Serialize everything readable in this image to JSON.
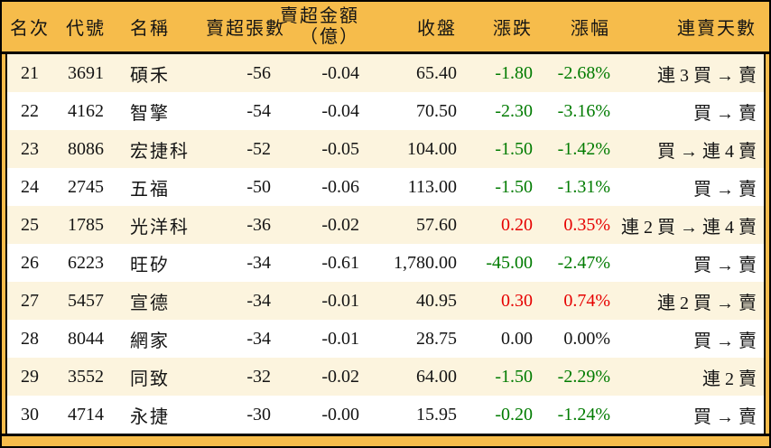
{
  "colors": {
    "header_bg": "#F6BC4B",
    "row_bg": "#FFFFFF",
    "row_alt_bg": "#FCF4DE",
    "border": "#000000",
    "up_red": "#E60000",
    "down_green": "#007B00",
    "text": "#141414"
  },
  "table": {
    "columns": [
      {
        "key": "rank",
        "label": "名次"
      },
      {
        "key": "code",
        "label": "代號"
      },
      {
        "key": "name",
        "label": "名稱"
      },
      {
        "key": "sell_volume",
        "label": "賣超張數"
      },
      {
        "key": "sell_amount",
        "label": "賣超金額",
        "label2": "（億）"
      },
      {
        "key": "close",
        "label": "收盤"
      },
      {
        "key": "change",
        "label": "漲跌"
      },
      {
        "key": "change_pct",
        "label": "漲幅"
      },
      {
        "key": "streak",
        "label": "連賣天數"
      }
    ],
    "rows": [
      {
        "rank": "21",
        "code": "3691",
        "name": "碩禾",
        "sell_volume": "-56",
        "sell_amount": "-0.04",
        "close": "65.40",
        "change": "-1.80",
        "change_pct": "-2.68%",
        "streak": "連 3 買 → 賣",
        "trend": "down"
      },
      {
        "rank": "22",
        "code": "4162",
        "name": "智擎",
        "sell_volume": "-54",
        "sell_amount": "-0.04",
        "close": "70.50",
        "change": "-2.30",
        "change_pct": "-3.16%",
        "streak": "買 → 賣",
        "trend": "down"
      },
      {
        "rank": "23",
        "code": "8086",
        "name": "宏捷科",
        "sell_volume": "-52",
        "sell_amount": "-0.05",
        "close": "104.00",
        "change": "-1.50",
        "change_pct": "-1.42%",
        "streak": "買 → 連 4 賣",
        "trend": "down"
      },
      {
        "rank": "24",
        "code": "2745",
        "name": "五福",
        "sell_volume": "-50",
        "sell_amount": "-0.06",
        "close": "113.00",
        "change": "-1.50",
        "change_pct": "-1.31%",
        "streak": "買 → 賣",
        "trend": "down"
      },
      {
        "rank": "25",
        "code": "1785",
        "name": "光洋科",
        "sell_volume": "-36",
        "sell_amount": "-0.02",
        "close": "57.60",
        "change": "0.20",
        "change_pct": "0.35%",
        "streak": "連 2 買 → 連 4 賣",
        "trend": "up"
      },
      {
        "rank": "26",
        "code": "6223",
        "name": "旺矽",
        "sell_volume": "-34",
        "sell_amount": "-0.61",
        "close": "1,780.00",
        "change": "-45.00",
        "change_pct": "-2.47%",
        "streak": "買 → 賣",
        "trend": "down"
      },
      {
        "rank": "27",
        "code": "5457",
        "name": "宣德",
        "sell_volume": "-34",
        "sell_amount": "-0.01",
        "close": "40.95",
        "change": "0.30",
        "change_pct": "0.74%",
        "streak": "連 2 買 → 賣",
        "trend": "up"
      },
      {
        "rank": "28",
        "code": "8044",
        "name": "網家",
        "sell_volume": "-34",
        "sell_amount": "-0.01",
        "close": "28.75",
        "change": "0.00",
        "change_pct": "0.00%",
        "streak": "買 → 賣",
        "trend": "flat"
      },
      {
        "rank": "29",
        "code": "3552",
        "name": "同致",
        "sell_volume": "-32",
        "sell_amount": "-0.02",
        "close": "64.00",
        "change": "-1.50",
        "change_pct": "-2.29%",
        "streak": "連 2 賣",
        "trend": "down"
      },
      {
        "rank": "30",
        "code": "4714",
        "name": "永捷",
        "sell_volume": "-30",
        "sell_amount": "-0.00",
        "close": "15.95",
        "change": "-0.20",
        "change_pct": "-1.24%",
        "streak": "買 → 賣",
        "trend": "down"
      }
    ]
  }
}
